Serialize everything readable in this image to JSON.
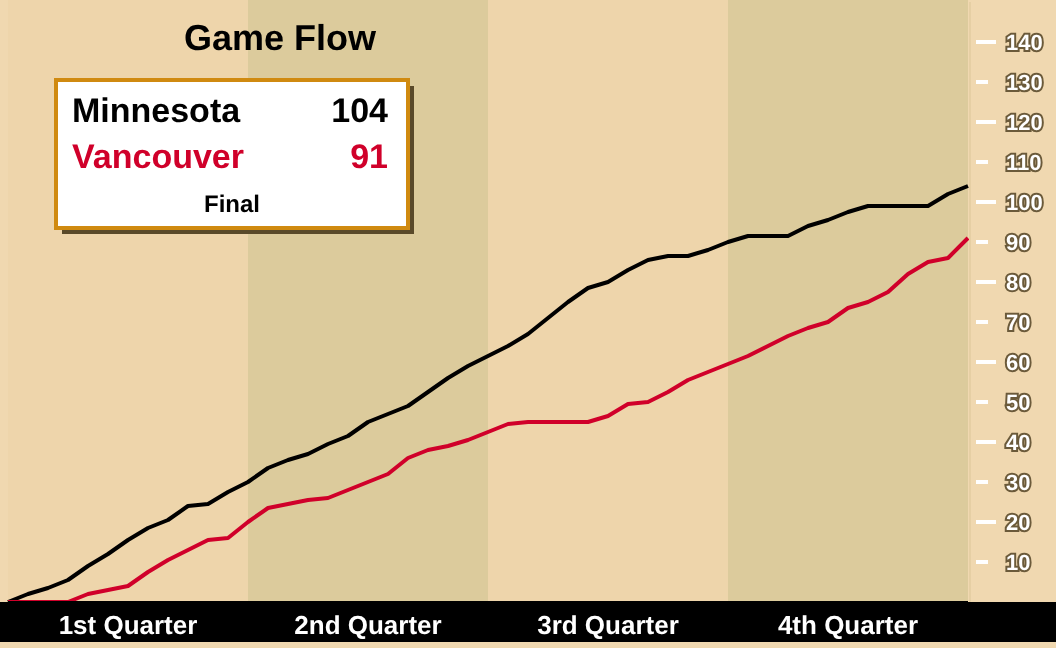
{
  "chart_data": {
    "type": "line",
    "title": "Game Flow",
    "ylim": [
      0,
      150
    ],
    "categories": [
      null,
      null,
      null,
      null,
      null,
      null,
      "1st Quarter",
      null,
      null,
      null,
      null,
      null,
      null,
      null,
      null,
      null,
      null,
      null,
      "2nd Quarter",
      null,
      null,
      null,
      null,
      null,
      null,
      null,
      null,
      null,
      null,
      null,
      "3rd Quarter",
      null,
      null,
      null,
      null,
      null,
      null,
      null,
      null,
      null,
      null,
      null,
      "4th Quarter",
      null,
      null,
      null,
      null,
      null,
      null
    ],
    "yticks": [
      10,
      20,
      30,
      40,
      50,
      60,
      70,
      80,
      90,
      100,
      110,
      120,
      130,
      140
    ],
    "legend": "top left",
    "grid": false,
    "marker": "none",
    "line_style": "solid",
    "annotations": [
      "104",
      "91",
      "Final"
    ],
    "series": [
      {
        "name": "Minnesota",
        "color": "#000000",
        "values": [
          0,
          2,
          3.5,
          5.5,
          9,
          12,
          15.5,
          18.5,
          20.5,
          24,
          24.5,
          27.5,
          30,
          33.5,
          35.5,
          37,
          39.5,
          41.5,
          45,
          47,
          49,
          52.5,
          56,
          59,
          61.5,
          64,
          67,
          71,
          75,
          78.5,
          80,
          83,
          85.5,
          86.5,
          86.5,
          88,
          90,
          91.5,
          91.5,
          91.5,
          94,
          95.5,
          97.5,
          99,
          99,
          99,
          99,
          102,
          104
        ]
      },
      {
        "name": "Vancouver",
        "color": "#d0002a",
        "values": [
          0,
          0,
          0,
          0,
          2,
          3,
          4,
          7.5,
          10.5,
          13,
          15.5,
          16,
          20,
          23.5,
          24.5,
          25.5,
          26,
          28,
          30,
          32,
          36,
          38,
          39,
          40.5,
          42.5,
          44.5,
          45,
          45,
          45,
          45,
          46.5,
          49.5,
          50,
          52.5,
          55.5,
          57.5,
          59.5,
          61.5,
          64,
          66.5,
          68.5,
          70,
          73.5,
          75,
          77.5,
          82,
          85,
          86,
          91
        ]
      }
    ]
  }
}
